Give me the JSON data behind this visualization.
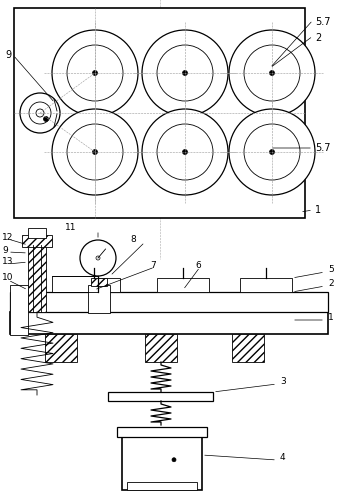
{
  "fig_width": 3.56,
  "fig_height": 4.99,
  "dpi": 100,
  "bg_color": "#ffffff",
  "line_color": "#000000"
}
